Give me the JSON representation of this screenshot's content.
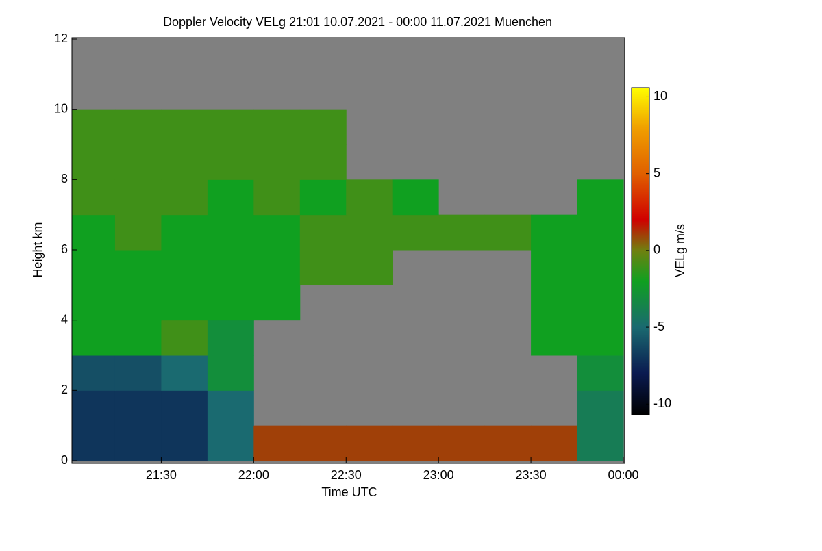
{
  "chart_data": {
    "type": "heatmap",
    "title": "Doppler Velocity VELg   21:01 10.07.2021 - 00:00 11.07.2021 Muenchen",
    "x_label": "Time UTC",
    "y_label": "Height km",
    "colorbar_label": "VELg m/s",
    "xlim": [
      1,
      180
    ],
    "xticks": [
      {
        "value": 30,
        "label": "21:30"
      },
      {
        "value": 60,
        "label": "22:00"
      },
      {
        "value": 90,
        "label": "22:30"
      },
      {
        "value": 120,
        "label": "23:00"
      },
      {
        "value": 150,
        "label": "23:30"
      },
      {
        "value": 180,
        "label": "00:00"
      }
    ],
    "ylim": [
      0,
      12
    ],
    "yticks": [
      0,
      2,
      4,
      6,
      8,
      10,
      12
    ],
    "x_edges": [
      1,
      15,
      30,
      45,
      60,
      75,
      90,
      105,
      120,
      135,
      150,
      165,
      180
    ],
    "y_edges": [
      0,
      1,
      2,
      3,
      4,
      5,
      6,
      7,
      8,
      9,
      10,
      11,
      12
    ],
    "values": [
      [
        -7,
        -7,
        -7,
        -5,
        1,
        1,
        1,
        1,
        1,
        1,
        1,
        -4
      ],
      [
        -7,
        -7,
        -7,
        -5,
        null,
        null,
        null,
        null,
        null,
        null,
        null,
        -4
      ],
      [
        -6,
        -6,
        -5,
        -3,
        null,
        null,
        null,
        null,
        null,
        null,
        null,
        -3
      ],
      [
        -2,
        -2,
        -1,
        -3,
        null,
        null,
        null,
        null,
        null,
        null,
        -2,
        -2
      ],
      [
        -2,
        -2,
        -2,
        -2,
        -2,
        null,
        null,
        null,
        null,
        null,
        -2,
        -2
      ],
      [
        -2,
        -2,
        -2,
        -2,
        -2,
        -1,
        -1,
        null,
        null,
        null,
        -2,
        -2
      ],
      [
        -2,
        -1,
        -2,
        -2,
        -2,
        -1,
        -1,
        -1,
        -1,
        -1,
        -2,
        -2
      ],
      [
        -1,
        -1,
        -1,
        -2,
        -1,
        -2,
        -1,
        -2,
        null,
        null,
        null,
        -2
      ],
      [
        -1,
        -1,
        -1,
        -1,
        -1,
        -1,
        null,
        null,
        null,
        null,
        null,
        null
      ],
      [
        -1,
        -1,
        -1,
        -1,
        -1,
        -1,
        null,
        null,
        null,
        null,
        null,
        null
      ],
      [
        null,
        null,
        null,
        null,
        null,
        null,
        null,
        null,
        null,
        null,
        null,
        null
      ],
      [
        null,
        null,
        null,
        null,
        null,
        null,
        null,
        null,
        null,
        null,
        null,
        null
      ]
    ],
    "zlim": [
      -10.7,
      10.6
    ],
    "zticks": [
      10,
      5,
      0,
      -5,
      -10
    ],
    "missing_color": "#808080",
    "colormap": [
      [
        -10.7,
        "#000000"
      ],
      [
        -8,
        "#0a1a50"
      ],
      [
        -5,
        "#1a6a70"
      ],
      [
        -2,
        "#10a020"
      ],
      [
        0,
        "#708010"
      ],
      [
        2,
        "#d00000"
      ],
      [
        5,
        "#e06000"
      ],
      [
        8,
        "#f0a000"
      ],
      [
        10.6,
        "#ffff00"
      ]
    ]
  }
}
